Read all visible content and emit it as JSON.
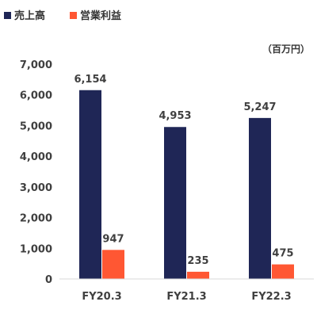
{
  "chart_data": {
    "type": "bar",
    "unit_label": "（百万円）",
    "categories": [
      "FY20.3",
      "FY21.3",
      "FY22.3"
    ],
    "series": [
      {
        "name": "売上高",
        "values": [
          6154,
          4953,
          5247
        ],
        "color": "#1f2656"
      },
      {
        "name": "営業利益",
        "values": [
          947,
          235,
          475
        ],
        "color": "#ff5733"
      }
    ],
    "ylim": [
      0,
      7000
    ],
    "yticks": [
      0,
      1000,
      2000,
      3000,
      4000,
      5000,
      6000,
      7000
    ],
    "ytick_labels": [
      "0",
      "1,000",
      "2,000",
      "3,000",
      "4,000",
      "5,000",
      "6,000",
      "7,000"
    ],
    "data_labels": [
      [
        "6,154",
        "4,953",
        "5,247"
      ],
      [
        "947",
        "235",
        "475"
      ]
    ],
    "legend_position": "top-left",
    "grid": false
  }
}
